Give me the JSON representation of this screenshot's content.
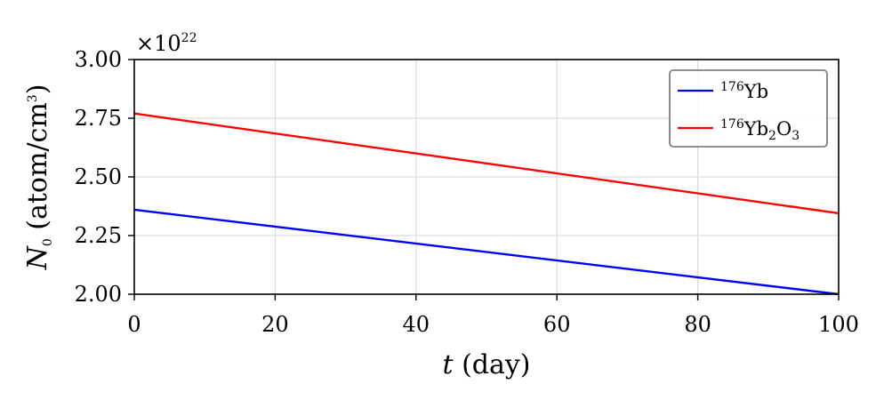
{
  "chart_data": {
    "type": "line",
    "x": [
      0,
      100
    ],
    "xlim": [
      0,
      100
    ],
    "ylim": [
      2.0,
      3.0
    ],
    "xticks": [
      0,
      20,
      40,
      60,
      80,
      100
    ],
    "xtick_labels": [
      "0",
      "20",
      "40",
      "60",
      "80",
      "100"
    ],
    "yticks": [
      2.0,
      2.25,
      2.5,
      2.75,
      3.0
    ],
    "ytick_labels": [
      "2.00",
      "2.25",
      "2.50",
      "2.75",
      "3.00"
    ],
    "y_multiplier": "×10",
    "y_multiplier_exp": "22",
    "xlabel_var": "t",
    "xlabel_unit": " (day)",
    "ylabel_var": "N",
    "ylabel_sub": "0",
    "ylabel_unit": " (atom/cm",
    "ylabel_unit_sup": "3",
    "ylabel_unit_close": ")",
    "grid": true,
    "legend_position": "top-right",
    "series": [
      {
        "name": "176Yb",
        "legend_parts": {
          "sup": "176",
          "base": "Yb"
        },
        "color": "#0000ff",
        "values": [
          2.36,
          2.0
        ]
      },
      {
        "name": "176Yb2O3",
        "legend_parts": {
          "sup": "176",
          "base": "Yb",
          "sub1": "2",
          "mid": "O",
          "sub2": "3"
        },
        "color": "#ff0000",
        "values": [
          2.77,
          2.345
        ]
      }
    ]
  }
}
